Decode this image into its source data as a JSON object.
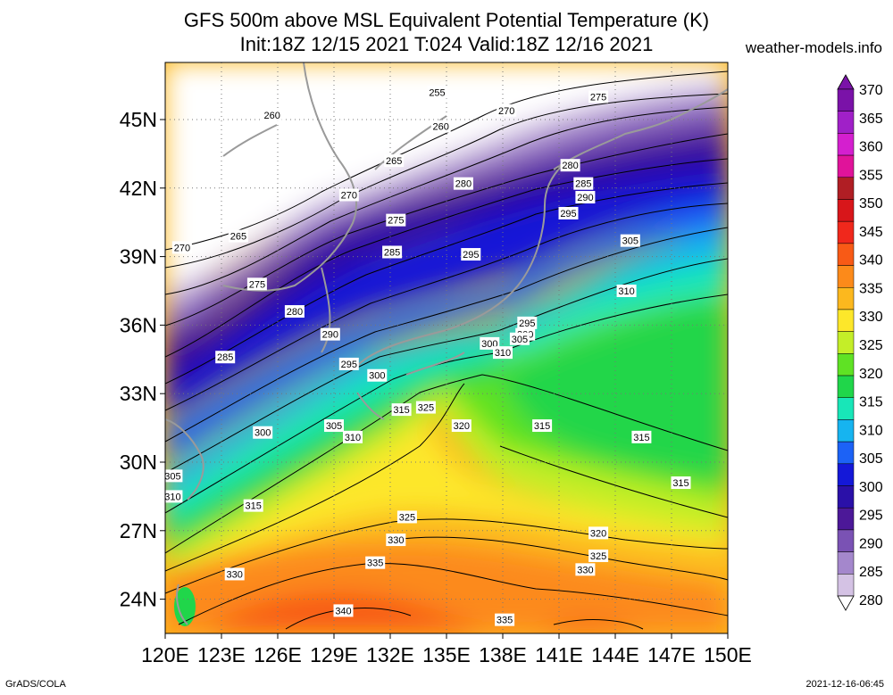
{
  "title_line1": "GFS 500m above MSL Equivalent Potential Temperature (K)",
  "title_line2": "Init:18Z 12/15 2021 T:024 Valid:18Z 12/16 2021",
  "site": "weather-models.info",
  "credit": "GrADS/COLA",
  "timestamp": "2021-12-16-06:45",
  "map": {
    "lon_ticks": [
      "120E",
      "123E",
      "126E",
      "129E",
      "132E",
      "135E",
      "138E",
      "141E",
      "144E",
      "147E",
      "150E"
    ],
    "lat_ticks": [
      "45N",
      "42N",
      "39N",
      "36N",
      "33N",
      "30N",
      "27N",
      "24N"
    ],
    "lon_range": [
      120,
      150
    ],
    "lat_range": [
      22.5,
      47.5
    ]
  },
  "colorbar": {
    "labels": [
      "370",
      "365",
      "360",
      "355",
      "350",
      "345",
      "340",
      "335",
      "330",
      "325",
      "320",
      "315",
      "310",
      "305",
      "300",
      "295",
      "290",
      "285",
      "280"
    ],
    "colors": [
      "#7a12a8",
      "#a020c8",
      "#d41fcf",
      "#e0139a",
      "#b01e24",
      "#d8161a",
      "#f0281c",
      "#f85a16",
      "#fc8a1a",
      "#fcb81e",
      "#fde72a",
      "#c4ee28",
      "#5fe224",
      "#20d64a",
      "#18e6b8",
      "#16b4f0",
      "#1c62f6",
      "#1418d8",
      "#2a10a8",
      "#4c1898",
      "#7a52b4",
      "#a487cc",
      "#d4c2e4"
    ]
  },
  "contour_labels": [
    {
      "text": "255",
      "lon": 134.5,
      "lat": 46.2
    },
    {
      "text": "260",
      "lon": 125.7,
      "lat": 45.2
    },
    {
      "text": "260",
      "lon": 134.7,
      "lat": 44.7
    },
    {
      "text": "265",
      "lon": 132.2,
      "lat": 43.2
    },
    {
      "text": "265",
      "lon": 123.9,
      "lat": 39.9
    },
    {
      "text": "270",
      "lon": 138.2,
      "lat": 45.4
    },
    {
      "text": "270",
      "lon": 129.8,
      "lat": 41.7
    },
    {
      "text": "270",
      "lon": 120.9,
      "lat": 39.4
    },
    {
      "text": "275",
      "lon": 143.1,
      "lat": 46.0
    },
    {
      "text": "275",
      "lon": 132.3,
      "lat": 40.6
    },
    {
      "text": "275",
      "lon": 124.9,
      "lat": 37.8
    },
    {
      "text": "280",
      "lon": 141.6,
      "lat": 43.0
    },
    {
      "text": "280",
      "lon": 135.9,
      "lat": 42.2
    },
    {
      "text": "280",
      "lon": 126.9,
      "lat": 36.6
    },
    {
      "text": "285",
      "lon": 142.3,
      "lat": 42.2
    },
    {
      "text": "285",
      "lon": 132.1,
      "lat": 39.2
    },
    {
      "text": "285",
      "lon": 123.2,
      "lat": 34.6
    },
    {
      "text": "290",
      "lon": 142.4,
      "lat": 41.6
    },
    {
      "text": "290",
      "lon": 128.8,
      "lat": 35.6
    },
    {
      "text": "295",
      "lon": 141.5,
      "lat": 40.9
    },
    {
      "text": "295",
      "lon": 136.3,
      "lat": 39.1
    },
    {
      "text": "295",
      "lon": 139.3,
      "lat": 36.1
    },
    {
      "text": "295",
      "lon": 129.8,
      "lat": 34.3
    },
    {
      "text": "300",
      "lon": 139.2,
      "lat": 35.6
    },
    {
      "text": "300",
      "lon": 137.3,
      "lat": 35.2
    },
    {
      "text": "300",
      "lon": 131.3,
      "lat": 33.8
    },
    {
      "text": "300",
      "lon": 125.2,
      "lat": 31.3
    },
    {
      "text": "305",
      "lon": 144.8,
      "lat": 39.7
    },
    {
      "text": "305",
      "lon": 138.9,
      "lat": 35.4
    },
    {
      "text": "305",
      "lon": 129.0,
      "lat": 31.6
    },
    {
      "text": "305",
      "lon": 120.4,
      "lat": 29.4
    },
    {
      "text": "310",
      "lon": 144.6,
      "lat": 37.5
    },
    {
      "text": "310",
      "lon": 138.0,
      "lat": 34.8
    },
    {
      "text": "310",
      "lon": 130.0,
      "lat": 31.1
    },
    {
      "text": "310",
      "lon": 120.4,
      "lat": 28.5
    },
    {
      "text": "315",
      "lon": 132.6,
      "lat": 32.3
    },
    {
      "text": "315",
      "lon": 140.1,
      "lat": 31.6
    },
    {
      "text": "315",
      "lon": 145.4,
      "lat": 31.1
    },
    {
      "text": "315",
      "lon": 147.5,
      "lat": 29.1
    },
    {
      "text": "315",
      "lon": 124.7,
      "lat": 28.1
    },
    {
      "text": "320",
      "lon": 135.8,
      "lat": 31.6
    },
    {
      "text": "320",
      "lon": 143.1,
      "lat": 26.9
    },
    {
      "text": "325",
      "lon": 133.9,
      "lat": 32.4
    },
    {
      "text": "325",
      "lon": 132.9,
      "lat": 27.6
    },
    {
      "text": "325",
      "lon": 143.1,
      "lat": 25.9
    },
    {
      "text": "330",
      "lon": 132.3,
      "lat": 26.6
    },
    {
      "text": "330",
      "lon": 142.4,
      "lat": 25.3
    },
    {
      "text": "330",
      "lon": 123.7,
      "lat": 25.1
    },
    {
      "text": "335",
      "lon": 131.2,
      "lat": 25.6
    },
    {
      "text": "335",
      "lon": 138.1,
      "lat": 23.1
    },
    {
      "text": "340",
      "lon": 129.5,
      "lat": 23.5
    }
  ]
}
